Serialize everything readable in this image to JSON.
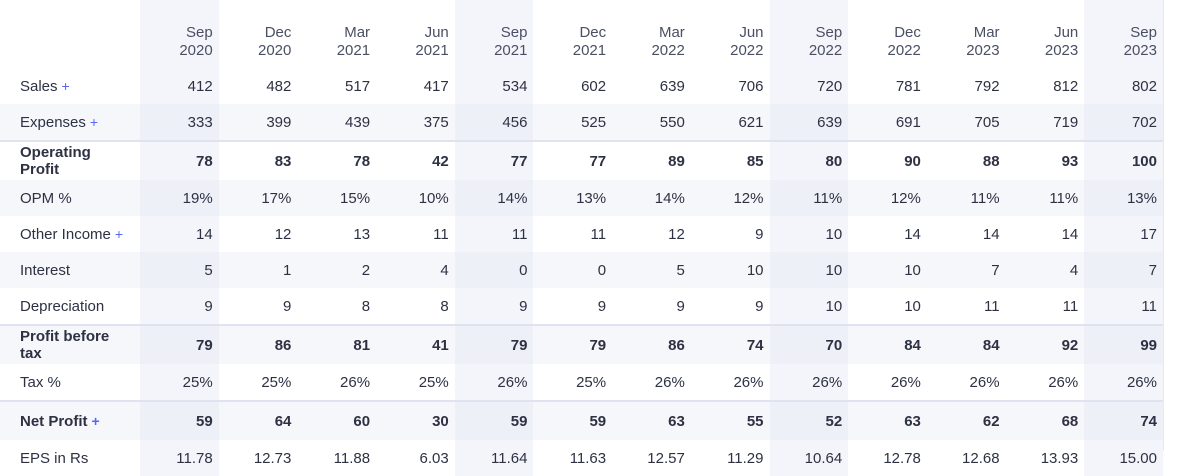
{
  "columns": [
    {
      "month": "Sep",
      "year": "2020"
    },
    {
      "month": "Dec",
      "year": "2020"
    },
    {
      "month": "Mar",
      "year": "2021"
    },
    {
      "month": "Jun",
      "year": "2021"
    },
    {
      "month": "Sep",
      "year": "2021"
    },
    {
      "month": "Dec",
      "year": "2021"
    },
    {
      "month": "Mar",
      "year": "2022"
    },
    {
      "month": "Jun",
      "year": "2022"
    },
    {
      "month": "Sep",
      "year": "2022"
    },
    {
      "month": "Dec",
      "year": "2022"
    },
    {
      "month": "Mar",
      "year": "2023"
    },
    {
      "month": "Jun",
      "year": "2023"
    },
    {
      "month": "Sep",
      "year": "2023"
    }
  ],
  "expand_symbol": "+",
  "rows": [
    {
      "label": "Sales",
      "expandable": true,
      "bold": false,
      "values": [
        "412",
        "482",
        "517",
        "417",
        "534",
        "602",
        "639",
        "706",
        "720",
        "781",
        "792",
        "812",
        "802"
      ]
    },
    {
      "label": "Expenses",
      "expandable": true,
      "bold": false,
      "values": [
        "333",
        "399",
        "439",
        "375",
        "456",
        "525",
        "550",
        "621",
        "639",
        "691",
        "705",
        "719",
        "702"
      ]
    },
    {
      "label": "Operating Profit",
      "expandable": false,
      "bold": true,
      "values": [
        "78",
        "83",
        "78",
        "42",
        "77",
        "77",
        "89",
        "85",
        "80",
        "90",
        "88",
        "93",
        "100"
      ]
    },
    {
      "label": "OPM %",
      "expandable": false,
      "bold": false,
      "values": [
        "19%",
        "17%",
        "15%",
        "10%",
        "14%",
        "13%",
        "14%",
        "12%",
        "11%",
        "12%",
        "11%",
        "11%",
        "13%"
      ]
    },
    {
      "label": "Other Income",
      "expandable": true,
      "bold": false,
      "values": [
        "14",
        "12",
        "13",
        "11",
        "11",
        "11",
        "12",
        "9",
        "10",
        "14",
        "14",
        "14",
        "17"
      ]
    },
    {
      "label": "Interest",
      "expandable": false,
      "bold": false,
      "values": [
        "5",
        "1",
        "2",
        "4",
        "0",
        "0",
        "5",
        "10",
        "10",
        "10",
        "7",
        "4",
        "7"
      ]
    },
    {
      "label": "Depreciation",
      "expandable": false,
      "bold": false,
      "values": [
        "9",
        "9",
        "8",
        "8",
        "9",
        "9",
        "9",
        "9",
        "10",
        "10",
        "11",
        "11",
        "11"
      ]
    },
    {
      "label": "Profit before tax",
      "expandable": false,
      "bold": true,
      "values": [
        "79",
        "86",
        "81",
        "41",
        "79",
        "79",
        "86",
        "74",
        "70",
        "84",
        "84",
        "92",
        "99"
      ]
    },
    {
      "label": "Tax %",
      "expandable": false,
      "bold": false,
      "values": [
        "25%",
        "25%",
        "26%",
        "25%",
        "26%",
        "25%",
        "26%",
        "26%",
        "26%",
        "26%",
        "26%",
        "26%",
        "26%"
      ]
    },
    {
      "label": "Net Profit",
      "expandable": true,
      "bold": true,
      "values": [
        "59",
        "64",
        "60",
        "30",
        "59",
        "59",
        "63",
        "55",
        "52",
        "63",
        "62",
        "68",
        "74"
      ]
    },
    {
      "label": "EPS in Rs",
      "expandable": false,
      "bold": false,
      "values": [
        "11.78",
        "12.73",
        "11.88",
        "6.03",
        "11.64",
        "11.63",
        "12.57",
        "11.29",
        "10.64",
        "12.78",
        "12.68",
        "13.93",
        "15.00"
      ]
    }
  ]
}
